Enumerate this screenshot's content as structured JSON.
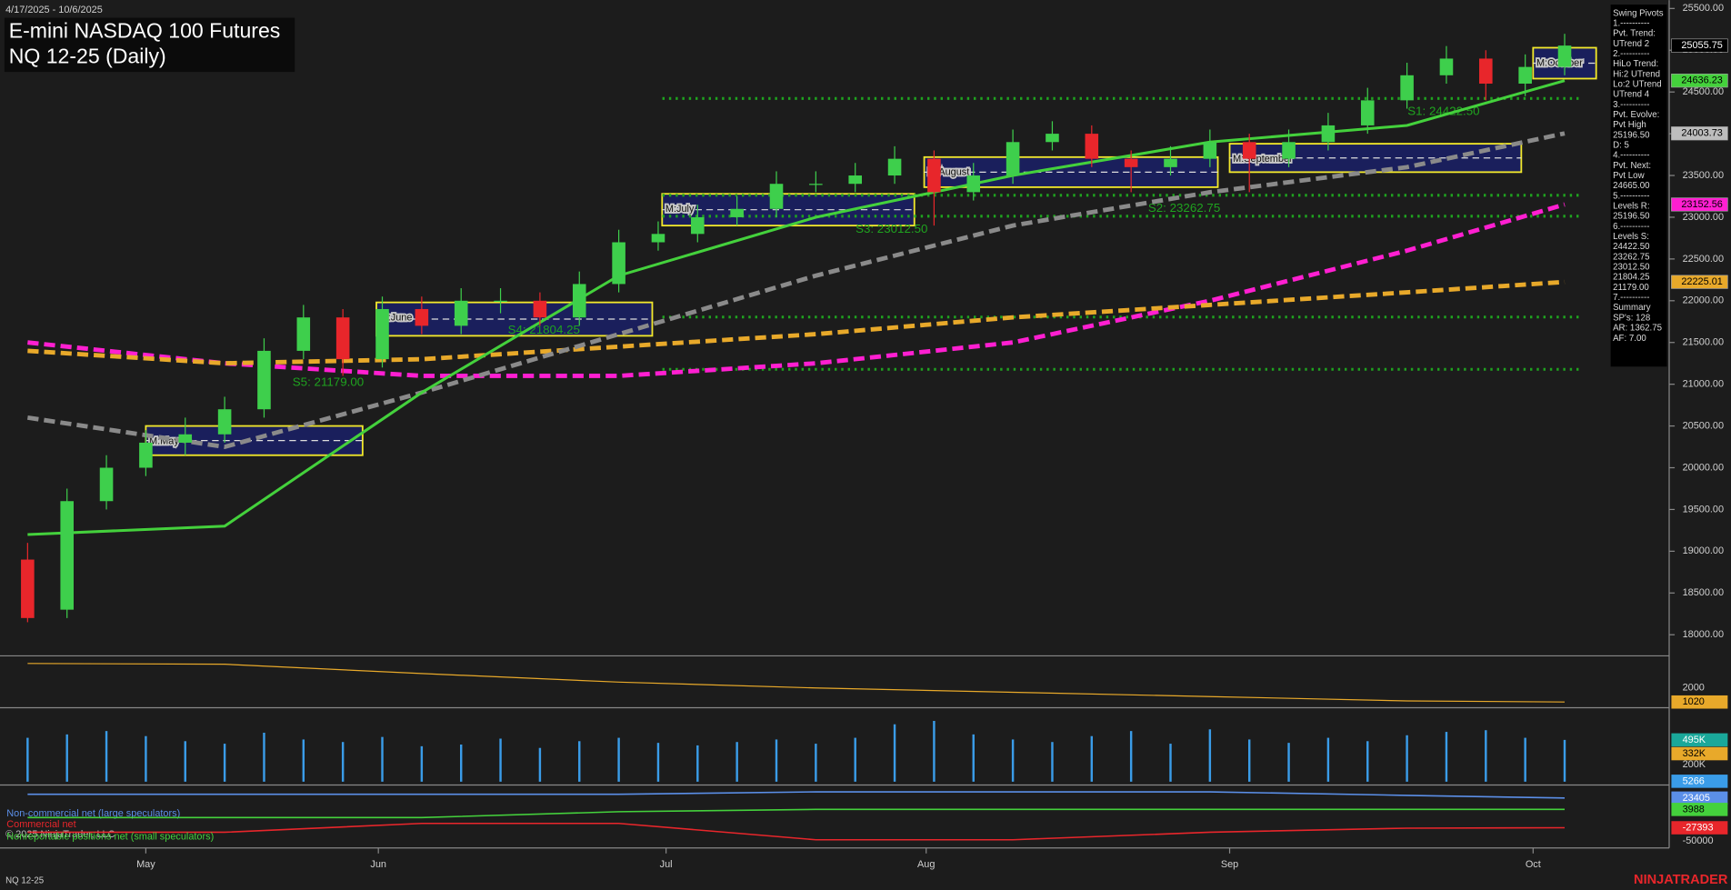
{
  "chart_data": {
    "type": "candlestick",
    "title": "E-mini NASDAQ 100 Futures",
    "subtitle": "NQ 12-25 (Daily)",
    "date_range": "4/17/2025 - 10/6/2025",
    "instrument": "NQ 12-25",
    "brand": "NINJATRADER",
    "copyright": "© 2025 NinjaTrader, LLC",
    "xlim": [
      -1,
      41
    ],
    "xticks": [
      {
        "value": 3.0,
        "label": "May"
      },
      {
        "value": 8.9,
        "label": "Jun"
      },
      {
        "value": 16.2,
        "label": "Jul"
      },
      {
        "value": 22.8,
        "label": "Aug"
      },
      {
        "value": 30.5,
        "label": "Sep"
      },
      {
        "value": 38.2,
        "label": "Oct"
      }
    ],
    "ylim": [
      17800,
      25600
    ],
    "yticks": [
      {
        "value": 18000,
        "label": "18000.00"
      },
      {
        "value": 18500,
        "label": "18500.00"
      },
      {
        "value": 19000,
        "label": "19000.00"
      },
      {
        "value": 19500,
        "label": "19500.00"
      },
      {
        "value": 20000,
        "label": "20000.00"
      },
      {
        "value": 20500,
        "label": "20500.00"
      },
      {
        "value": 21000,
        "label": "21000.00"
      },
      {
        "value": 21500,
        "label": "21500.00"
      },
      {
        "value": 22000,
        "label": "22000.00"
      },
      {
        "value": 22500,
        "label": "22500.00"
      },
      {
        "value": 23000,
        "label": "23000.00"
      },
      {
        "value": 23500,
        "label": "23500.00"
      },
      {
        "value": 24000,
        "label": "24000.00"
      },
      {
        "value": 24500,
        "label": "24500.00"
      },
      {
        "value": 25000,
        "label": "25000.00"
      },
      {
        "value": 25500,
        "label": "25500.00"
      }
    ],
    "up_color": "#3ecf4c",
    "down_color": "#e8262b",
    "open": [
      18900,
      18300,
      19600,
      20000,
      20300,
      20400,
      20700,
      21400,
      21800,
      21300,
      21900,
      21700,
      22000,
      22000,
      21800,
      22200,
      22700,
      22800,
      23000,
      23100,
      23400,
      23400,
      23500,
      23700,
      23300,
      23500,
      23900,
      24000,
      23700,
      23600,
      23700,
      23900,
      23700,
      23900,
      24100,
      24400,
      24700,
      24900,
      24600,
      24800
    ],
    "high": [
      19100,
      19750,
      20150,
      20450,
      20600,
      20850,
      21550,
      21950,
      21900,
      22050,
      22050,
      22150,
      22150,
      22100,
      22350,
      22850,
      22950,
      23150,
      23250,
      23550,
      23550,
      23650,
      23850,
      23800,
      23650,
      24050,
      24150,
      24100,
      23800,
      23850,
      24050,
      24000,
      24050,
      24250,
      24550,
      24850,
      25050,
      25000,
      24950,
      25196.5
    ],
    "low": [
      18150,
      18200,
      19500,
      19900,
      20150,
      20300,
      20600,
      21300,
      21100,
      21200,
      21600,
      21600,
      21850,
      21700,
      21700,
      22100,
      22600,
      22700,
      22900,
      23000,
      23300,
      23300,
      23400,
      22900,
      23200,
      23400,
      23800,
      23600,
      23300,
      23500,
      23600,
      23300,
      23600,
      23800,
      24000,
      24300,
      24600,
      24400,
      24450,
      24700
    ],
    "close": [
      18200,
      19600,
      20000,
      20300,
      20400,
      20700,
      21400,
      21800,
      21300,
      21900,
      21700,
      22000,
      22000,
      21800,
      22200,
      22700,
      22800,
      23000,
      23100,
      23400,
      23400,
      23500,
      23700,
      23300,
      23500,
      23900,
      24000,
      23700,
      23600,
      23700,
      23900,
      23700,
      23900,
      24100,
      24400,
      24700,
      24900,
      24600,
      24800,
      25055.75
    ],
    "series": [
      {
        "name": "MA magenta",
        "color": "#ff1fd1",
        "x": [
          0,
          5,
          10,
          15,
          20,
          25,
          30,
          35,
          39
        ],
        "values": [
          21500,
          21250,
          21100,
          21100,
          21250,
          21500,
          22000,
          22600,
          23152.56
        ]
      },
      {
        "name": "MA orange",
        "color": "#e8a92a",
        "x": [
          0,
          5,
          10,
          15,
          20,
          25,
          30,
          35,
          39
        ],
        "values": [
          21400,
          21250,
          21300,
          21450,
          21600,
          21800,
          21950,
          22100,
          22225.01
        ]
      },
      {
        "name": "MA gray",
        "color": "#8a8a8a",
        "x": [
          0,
          5,
          10,
          15,
          20,
          25,
          30,
          35,
          39
        ],
        "values": [
          20600,
          20250,
          20900,
          21600,
          22300,
          22900,
          23300,
          23600,
          24003.73
        ]
      },
      {
        "name": "MA green",
        "color": "#44d13c",
        "x": [
          0,
          5,
          10,
          15,
          20,
          25,
          30,
          35,
          39
        ],
        "values": [
          19200,
          19300,
          20900,
          22300,
          23000,
          23500,
          23900,
          24100,
          24636.23
        ]
      }
    ],
    "price_tags": [
      25055.75,
      24636.23,
      24003.73,
      23152.56,
      22225.01
    ],
    "price_tag_colors": [
      "#000000",
      "#44d13c",
      "#bdbdbd",
      "#ff1fd1",
      "#e8a92a"
    ],
    "levels": [
      {
        "label": "S1: 24422.50",
        "value": 24422.5
      },
      {
        "label": "S2: 23262.75",
        "value": 23262.75
      },
      {
        "label": "S3: 23012.50",
        "value": 23012.5
      },
      {
        "label": "S4: 21804.25",
        "value": 21804.25
      },
      {
        "label": "S5: 21179.00",
        "value": 21179
      }
    ],
    "monthly_boxes": [
      {
        "label": "M:May",
        "start": 3.0,
        "end": 8.5,
        "high": 20500,
        "low": 20150
      },
      {
        "label": "M:June",
        "start": 8.85,
        "end": 15.85,
        "high": 21980,
        "low": 21580
      },
      {
        "label": "M:July",
        "start": 16.1,
        "end": 22.5,
        "high": 23280,
        "low": 22900
      },
      {
        "label": "M:August",
        "start": 22.75,
        "end": 30.2,
        "high": 23720,
        "low": 23360
      },
      {
        "label": "M:September",
        "start": 30.5,
        "end": 37.9,
        "high": 23880,
        "low": 23540
      },
      {
        "label": "M:October",
        "start": 38.2,
        "end": 39.8,
        "high": 25030,
        "low": 24660
      }
    ],
    "info_panel": [
      "Swing Pivots",
      "1.----------",
      "Pvt. Trend:",
      "UTrend 2",
      "2.----------",
      "HiLo Trend:",
      "Hi:2 UTrend",
      "Lo:2 UTrend",
      "UTrend 4",
      "3.----------",
      "Pvt. Evolve:",
      "Pvt High",
      "25196.50",
      "D: 5",
      "4.----------",
      "Pvt. Next:",
      "Pvt Low",
      "24665.00",
      "5.----------",
      "Levels R:",
      "25196.50",
      "6.----------",
      "Levels S:",
      "24422.50",
      "23262.75",
      "23012.50",
      "21804.25",
      "21179.00",
      "7.----------",
      "Summary",
      "SP's: 128",
      "AR: 1362.75",
      "AF: 7.00"
    ],
    "oscillator": {
      "color": "#e8a92a",
      "ylim": [
        700,
        4000
      ],
      "yticks": [
        2000
      ],
      "x": [
        0,
        5,
        10,
        15,
        20,
        25,
        30,
        35,
        39
      ],
      "values": [
        3700,
        3650,
        3000,
        2400,
        2000,
        1700,
        1400,
        1100,
        1020
      ]
    },
    "volume": {
      "color": "#3a9ce8",
      "ylim": [
        0,
        850000
      ],
      "yticks": [
        {
          "value": 200000,
          "label": "200K"
        }
      ],
      "tags": [
        {
          "value": 495000,
          "label": "495K"
        },
        {
          "value": 332000,
          "label": "332K"
        },
        {
          "value": 5266,
          "label": "5266"
        }
      ],
      "tag_colors": [
        "#1aa89a",
        "#e8a92a",
        "#3a9ce8"
      ],
      "values": [
        520000,
        560000,
        600000,
        540000,
        480000,
        450000,
        580000,
        500000,
        470000,
        530000,
        420000,
        440000,
        510000,
        400000,
        480000,
        520000,
        460000,
        430000,
        470000,
        500000,
        450000,
        520000,
        680000,
        720000,
        560000,
        500000,
        470000,
        540000,
        600000,
        450000,
        620000,
        500000,
        460000,
        520000,
        480000,
        550000,
        590000,
        610000,
        520000,
        495000
      ]
    },
    "cot": {
      "ylim": [
        -60000,
        42000
      ],
      "yticks": [
        -50000
      ],
      "x": [
        0,
        5,
        10,
        15,
        20,
        25,
        30,
        35,
        39
      ],
      "series": [
        {
          "name": "Non-commercial net (large speculators)",
          "color": "#5b8fe8",
          "values": [
            30000,
            30000,
            30000,
            30000,
            34000,
            34000,
            34000,
            28000,
            23405
          ]
        },
        {
          "name": "Commercial net",
          "color": "#e8262b",
          "values": [
            -35000,
            -35000,
            -20000,
            -20000,
            -48000,
            -48000,
            -35000,
            -28000,
            -27393
          ]
        },
        {
          "name": "Nonreportable positions net (small speculators)",
          "color": "#44d13c",
          "values": [
            -10000,
            -10000,
            -10000,
            0,
            4000,
            4000,
            4000,
            4000,
            3988
          ]
        }
      ]
    }
  }
}
